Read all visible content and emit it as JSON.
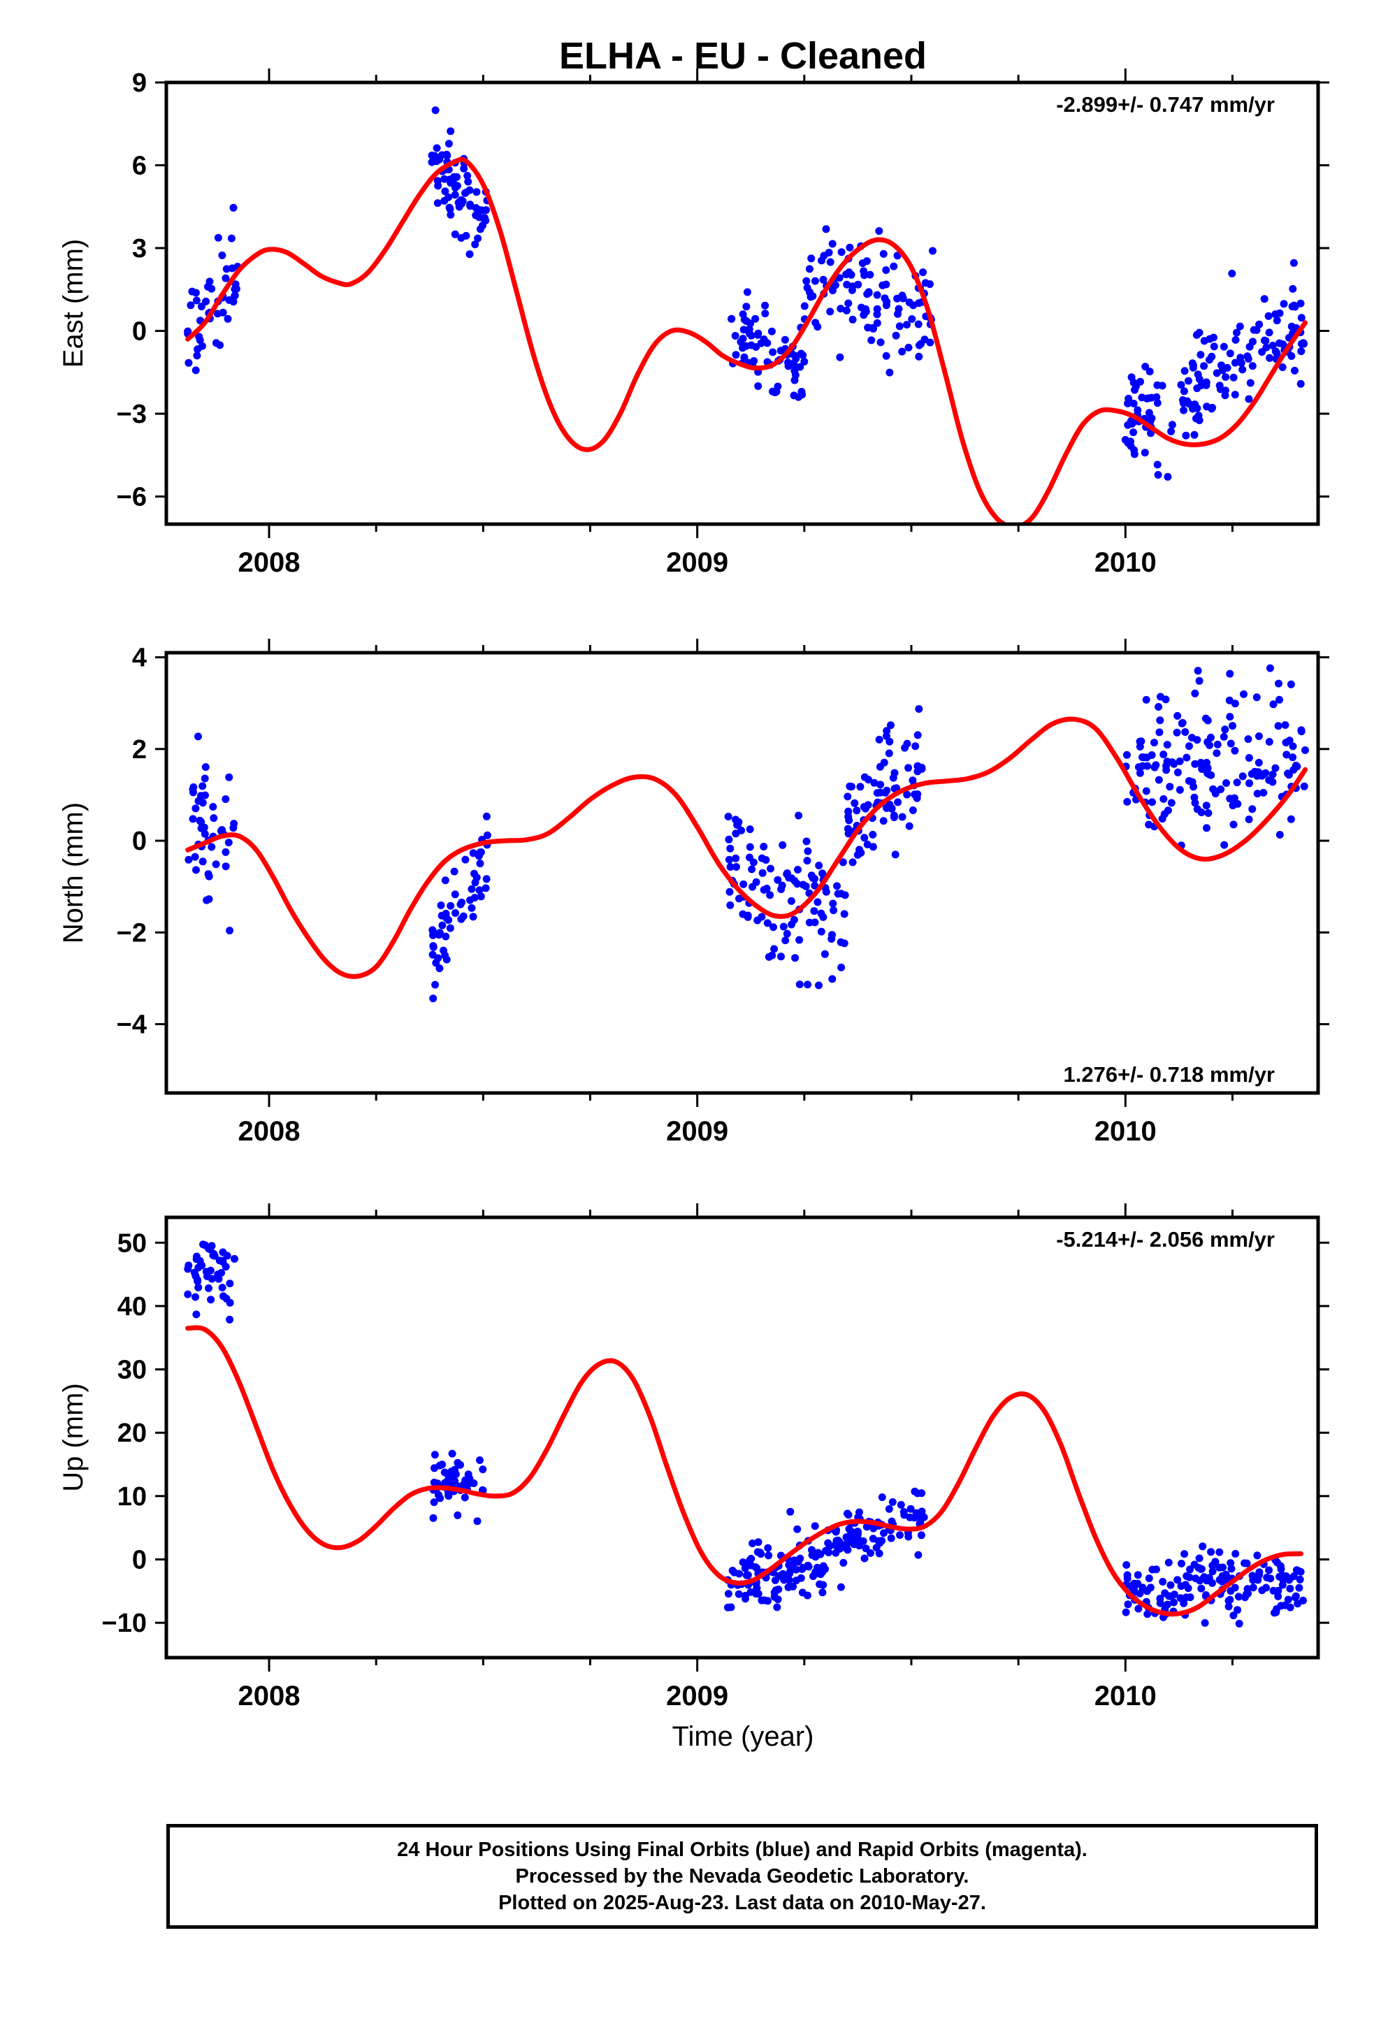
{
  "title": "ELHA  - EU - Cleaned",
  "xlabel": "Time (year)",
  "footer": {
    "line1": "24 Hour Positions Using Final Orbits (blue) and Rapid Orbits (magenta).",
    "line2": "Processed by the Nevada Geodetic Laboratory.",
    "line3": "Plotted on 2025-Aug-23. Last data on 2010-May-27."
  },
  "colors": {
    "points": "#0000ff",
    "fit": "#ff0000",
    "frame": "#000000"
  },
  "chart_data": [
    {
      "type": "scatter",
      "name": "east",
      "ylabel": "East (mm)",
      "rate_label": "-2.899+/- 0.747 mm/yr",
      "rate_position": "top-right",
      "xlim": [
        2007.76,
        2010.45
      ],
      "ylim": [
        -7,
        9
      ],
      "yticks": [
        -6,
        -3,
        0,
        3,
        6,
        9
      ],
      "ytick_labels": [
        "−6",
        "−3",
        "0",
        "3",
        "6",
        "9"
      ],
      "xticks": [
        2008,
        2009,
        2010
      ],
      "xtick_labels": [
        "2008",
        "2009",
        "2010"
      ],
      "fit_curve": [
        [
          2007.81,
          -0.3
        ],
        [
          2007.85,
          0.3
        ],
        [
          2007.89,
          1.3
        ],
        [
          2007.93,
          2.2
        ],
        [
          2007.97,
          2.75
        ],
        [
          2008.0,
          2.95
        ],
        [
          2008.04,
          2.85
        ],
        [
          2008.08,
          2.45
        ],
        [
          2008.12,
          2.0
        ],
        [
          2008.16,
          1.75
        ],
        [
          2008.19,
          1.7
        ],
        [
          2008.23,
          2.1
        ],
        [
          2008.27,
          2.9
        ],
        [
          2008.31,
          3.9
        ],
        [
          2008.35,
          4.9
        ],
        [
          2008.39,
          5.7
        ],
        [
          2008.43,
          6.1
        ],
        [
          2008.46,
          6.15
        ],
        [
          2008.5,
          5.3
        ],
        [
          2008.54,
          3.6
        ],
        [
          2008.58,
          1.3
        ],
        [
          2008.62,
          -1.0
        ],
        [
          2008.66,
          -2.8
        ],
        [
          2008.7,
          -3.9
        ],
        [
          2008.74,
          -4.3
        ],
        [
          2008.78,
          -4.0
        ],
        [
          2008.82,
          -3.0
        ],
        [
          2008.86,
          -1.6
        ],
        [
          2008.9,
          -0.5
        ],
        [
          2008.94,
          0.0
        ],
        [
          2008.98,
          -0.05
        ],
        [
          2009.02,
          -0.4
        ],
        [
          2009.06,
          -0.9
        ],
        [
          2009.1,
          -1.2
        ],
        [
          2009.14,
          -1.35
        ],
        [
          2009.18,
          -1.2
        ],
        [
          2009.22,
          -0.6
        ],
        [
          2009.26,
          0.4
        ],
        [
          2009.3,
          1.5
        ],
        [
          2009.34,
          2.4
        ],
        [
          2009.38,
          3.0
        ],
        [
          2009.42,
          3.3
        ],
        [
          2009.46,
          3.1
        ],
        [
          2009.5,
          2.3
        ],
        [
          2009.54,
          0.7
        ],
        [
          2009.58,
          -1.6
        ],
        [
          2009.62,
          -4.0
        ],
        [
          2009.66,
          -5.8
        ],
        [
          2009.7,
          -6.8
        ],
        [
          2009.74,
          -7.1
        ],
        [
          2009.78,
          -6.8
        ],
        [
          2009.82,
          -5.8
        ],
        [
          2009.86,
          -4.5
        ],
        [
          2009.9,
          -3.4
        ],
        [
          2009.94,
          -2.9
        ],
        [
          2009.98,
          -2.9
        ],
        [
          2010.02,
          -3.1
        ],
        [
          2010.06,
          -3.5
        ],
        [
          2010.1,
          -3.9
        ],
        [
          2010.14,
          -4.1
        ],
        [
          2010.18,
          -4.1
        ],
        [
          2010.22,
          -3.9
        ],
        [
          2010.26,
          -3.4
        ],
        [
          2010.3,
          -2.6
        ],
        [
          2010.34,
          -1.6
        ],
        [
          2010.38,
          -0.6
        ],
        [
          2010.42,
          0.3
        ]
      ],
      "clusters": [
        {
          "x": [
            2007.81,
            2007.93
          ],
          "center": [
            -0.2,
            2.2
          ],
          "spread": 0.9,
          "count": 45
        },
        {
          "x": [
            2008.38,
            2008.51
          ],
          "center": [
            6.4,
            3.8
          ],
          "spread": 0.8,
          "count": 70
        },
        {
          "x": [
            2009.07,
            2009.25
          ],
          "center": [
            -0.2,
            -1.3
          ],
          "spread": 0.9,
          "count": 70
        },
        {
          "x": [
            2009.25,
            2009.55
          ],
          "center": [
            1.6,
            1.0
          ],
          "spread": 0.9,
          "count": 110
        },
        {
          "x": [
            2010.0,
            2010.42
          ],
          "center": [
            -3.5,
            0.2
          ],
          "spread": 0.95,
          "count": 160
        }
      ]
    },
    {
      "type": "scatter",
      "name": "north",
      "ylabel": "North (mm)",
      "rate_label": "1.276+/- 0.718 mm/yr",
      "rate_position": "bottom-right",
      "xlim": [
        2007.76,
        2010.45
      ],
      "ylim": [
        -5.5,
        4.1
      ],
      "yticks": [
        -4,
        -2,
        0,
        2,
        4
      ],
      "ytick_labels": [
        "−4",
        "−2",
        "0",
        "2",
        "4"
      ],
      "xticks": [
        2008,
        2009,
        2010
      ],
      "xtick_labels": [
        "2008",
        "2009",
        "2010"
      ],
      "fit_curve": [
        [
          2007.81,
          -0.2
        ],
        [
          2007.85,
          -0.05
        ],
        [
          2007.89,
          0.1
        ],
        [
          2007.93,
          0.1
        ],
        [
          2007.97,
          -0.2
        ],
        [
          2008.01,
          -0.8
        ],
        [
          2008.05,
          -1.5
        ],
        [
          2008.09,
          -2.1
        ],
        [
          2008.13,
          -2.6
        ],
        [
          2008.17,
          -2.9
        ],
        [
          2008.21,
          -2.95
        ],
        [
          2008.25,
          -2.75
        ],
        [
          2008.29,
          -2.2
        ],
        [
          2008.33,
          -1.5
        ],
        [
          2008.37,
          -0.9
        ],
        [
          2008.41,
          -0.45
        ],
        [
          2008.45,
          -0.2
        ],
        [
          2008.5,
          -0.05
        ],
        [
          2008.55,
          0.0
        ],
        [
          2008.6,
          0.02
        ],
        [
          2008.65,
          0.15
        ],
        [
          2008.7,
          0.5
        ],
        [
          2008.75,
          0.9
        ],
        [
          2008.8,
          1.2
        ],
        [
          2008.85,
          1.38
        ],
        [
          2008.9,
          1.35
        ],
        [
          2008.95,
          1.0
        ],
        [
          2009.0,
          0.3
        ],
        [
          2009.05,
          -0.5
        ],
        [
          2009.1,
          -1.1
        ],
        [
          2009.15,
          -1.5
        ],
        [
          2009.19,
          -1.65
        ],
        [
          2009.23,
          -1.55
        ],
        [
          2009.28,
          -1.1
        ],
        [
          2009.33,
          -0.4
        ],
        [
          2009.38,
          0.3
        ],
        [
          2009.43,
          0.8
        ],
        [
          2009.48,
          1.1
        ],
        [
          2009.53,
          1.25
        ],
        [
          2009.58,
          1.3
        ],
        [
          2009.63,
          1.35
        ],
        [
          2009.68,
          1.5
        ],
        [
          2009.73,
          1.8
        ],
        [
          2009.78,
          2.2
        ],
        [
          2009.83,
          2.55
        ],
        [
          2009.88,
          2.65
        ],
        [
          2009.93,
          2.45
        ],
        [
          2009.98,
          1.8
        ],
        [
          2010.03,
          1.0
        ],
        [
          2010.08,
          0.3
        ],
        [
          2010.13,
          -0.2
        ],
        [
          2010.18,
          -0.4
        ],
        [
          2010.23,
          -0.3
        ],
        [
          2010.28,
          0.0
        ],
        [
          2010.33,
          0.45
        ],
        [
          2010.38,
          1.0
        ],
        [
          2010.42,
          1.55
        ]
      ],
      "clusters": [
        {
          "x": [
            2007.81,
            2007.92
          ],
          "center": [
            0.5,
            -0.2
          ],
          "spread": 0.85,
          "count": 45
        },
        {
          "x": [
            2008.38,
            2008.51
          ],
          "center": [
            -2.4,
            -0.3
          ],
          "spread": 0.5,
          "count": 55
        },
        {
          "x": [
            2009.07,
            2009.35
          ],
          "center": [
            -0.6,
            -1.8
          ],
          "spread": 0.75,
          "count": 110
        },
        {
          "x": [
            2009.35,
            2009.53
          ],
          "center": [
            0.3,
            1.7
          ],
          "spread": 0.6,
          "count": 80
        },
        {
          "x": [
            2010.0,
            2010.42
          ],
          "center": [
            1.5,
            1.8
          ],
          "spread": 0.9,
          "count": 160
        }
      ]
    },
    {
      "type": "scatter",
      "name": "up",
      "ylabel": "Up (mm)",
      "rate_label": "-5.214+/- 2.056 mm/yr",
      "rate_position": "top-right",
      "xlim": [
        2007.76,
        2010.45
      ],
      "ylim": [
        -15.5,
        54
      ],
      "yticks": [
        -10,
        0,
        10,
        20,
        30,
        40,
        50
      ],
      "ytick_labels": [
        "−10",
        "0",
        "10",
        "20",
        "30",
        "40",
        "50"
      ],
      "xticks": [
        2008,
        2009,
        2010
      ],
      "xtick_labels": [
        "2008",
        "2009",
        "2010"
      ],
      "fit_curve": [
        [
          2007.81,
          36.5
        ],
        [
          2007.85,
          36.3
        ],
        [
          2007.89,
          33.5
        ],
        [
          2007.93,
          28.0
        ],
        [
          2007.97,
          21.0
        ],
        [
          2008.01,
          14.0
        ],
        [
          2008.05,
          8.5
        ],
        [
          2008.09,
          4.5
        ],
        [
          2008.13,
          2.3
        ],
        [
          2008.17,
          1.9
        ],
        [
          2008.21,
          3.0
        ],
        [
          2008.25,
          5.3
        ],
        [
          2008.29,
          8.0
        ],
        [
          2008.33,
          10.2
        ],
        [
          2008.37,
          11.2
        ],
        [
          2008.41,
          11.3
        ],
        [
          2008.45,
          10.9
        ],
        [
          2008.49,
          10.3
        ],
        [
          2008.53,
          10.0
        ],
        [
          2008.57,
          10.5
        ],
        [
          2008.61,
          13.0
        ],
        [
          2008.65,
          17.5
        ],
        [
          2008.69,
          23.0
        ],
        [
          2008.73,
          28.0
        ],
        [
          2008.77,
          30.8
        ],
        [
          2008.81,
          31.2
        ],
        [
          2008.85,
          28.5
        ],
        [
          2008.89,
          22.5
        ],
        [
          2008.93,
          14.5
        ],
        [
          2008.97,
          7.0
        ],
        [
          2009.01,
          1.0
        ],
        [
          2009.05,
          -2.5
        ],
        [
          2009.09,
          -3.7
        ],
        [
          2009.13,
          -3.3
        ],
        [
          2009.17,
          -1.6
        ],
        [
          2009.21,
          0.5
        ],
        [
          2009.25,
          2.5
        ],
        [
          2009.29,
          4.2
        ],
        [
          2009.33,
          5.5
        ],
        [
          2009.37,
          6.0
        ],
        [
          2009.41,
          5.8
        ],
        [
          2009.45,
          5.2
        ],
        [
          2009.49,
          4.8
        ],
        [
          2009.53,
          5.2
        ],
        [
          2009.57,
          7.5
        ],
        [
          2009.61,
          12.0
        ],
        [
          2009.65,
          17.5
        ],
        [
          2009.69,
          22.5
        ],
        [
          2009.73,
          25.5
        ],
        [
          2009.77,
          26.0
        ],
        [
          2009.81,
          23.5
        ],
        [
          2009.85,
          18.0
        ],
        [
          2009.89,
          10.5
        ],
        [
          2009.93,
          3.5
        ],
        [
          2009.97,
          -2.0
        ],
        [
          2010.01,
          -5.5
        ],
        [
          2010.05,
          -7.5
        ],
        [
          2010.09,
          -8.5
        ],
        [
          2010.13,
          -8.5
        ],
        [
          2010.17,
          -7.5
        ],
        [
          2010.21,
          -5.5
        ],
        [
          2010.25,
          -3.5
        ],
        [
          2010.29,
          -1.5
        ],
        [
          2010.33,
          0.0
        ],
        [
          2010.37,
          0.8
        ],
        [
          2010.41,
          0.9
        ]
      ],
      "clusters": [
        {
          "x": [
            2007.81,
            2007.92
          ],
          "center": [
            45.0,
            46.0
          ],
          "spread": 2.6,
          "count": 45
        },
        {
          "x": [
            2008.38,
            2008.51
          ],
          "center": [
            11.5,
            13.0
          ],
          "spread": 2.2,
          "count": 55
        },
        {
          "x": [
            2009.07,
            2009.3
          ],
          "center": [
            -4.5,
            -0.5
          ],
          "spread": 2.5,
          "count": 110
        },
        {
          "x": [
            2009.3,
            2009.53
          ],
          "center": [
            2.5,
            6.5
          ],
          "spread": 2.4,
          "count": 90
        },
        {
          "x": [
            2010.0,
            2010.42
          ],
          "center": [
            -5.0,
            -3.0
          ],
          "spread": 2.5,
          "count": 160
        }
      ]
    }
  ]
}
